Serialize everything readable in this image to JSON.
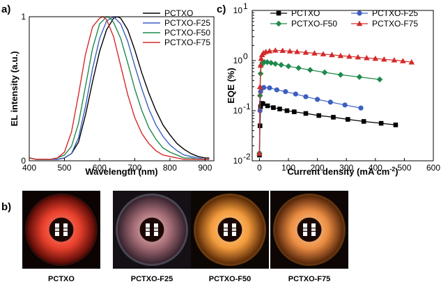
{
  "panels": {
    "a": "a)",
    "b": "b)",
    "c": "c)"
  },
  "chart_data": [
    {
      "id": "a",
      "type": "line",
      "xlabel": "Wavelength (nm)",
      "ylabel": "EL intensity (a.u.)",
      "xlim": [
        400,
        925
      ],
      "ylim": [
        0,
        1
      ],
      "xticks": [
        "400",
        "500",
        "600",
        "700",
        "800",
        "900"
      ],
      "xtick_values": [
        400,
        500,
        600,
        700,
        800,
        900
      ],
      "yticks": [
        "0",
        "1"
      ],
      "ytick_values": [
        0,
        1
      ],
      "legend_position": "top-right",
      "series": [
        {
          "name": "PCTXO",
          "color": "#000000",
          "x": [
            400,
            420,
            440,
            460,
            480,
            500,
            520,
            540,
            560,
            580,
            600,
            620,
            640,
            650,
            660,
            680,
            700,
            720,
            740,
            760,
            780,
            800,
            820,
            840,
            860,
            880,
            900,
            912
          ],
          "y": [
            0.02,
            0.01,
            0.01,
            0.01,
            0.01,
            0.02,
            0.05,
            0.13,
            0.32,
            0.55,
            0.76,
            0.91,
            0.99,
            1.0,
            0.99,
            0.91,
            0.77,
            0.61,
            0.47,
            0.35,
            0.25,
            0.18,
            0.12,
            0.08,
            0.05,
            0.03,
            0.02,
            0.02
          ]
        },
        {
          "name": "PCTXO-F25",
          "color": "#3b5fc0",
          "x": [
            400,
            420,
            440,
            460,
            480,
            500,
            520,
            540,
            560,
            580,
            600,
            620,
            640,
            660,
            680,
            700,
            720,
            740,
            760,
            780,
            800,
            820,
            840,
            860,
            880,
            900,
            912
          ],
          "y": [
            0.02,
            0.01,
            0.01,
            0.01,
            0.01,
            0.02,
            0.05,
            0.16,
            0.38,
            0.64,
            0.85,
            0.97,
            1.0,
            0.95,
            0.83,
            0.66,
            0.5,
            0.36,
            0.25,
            0.17,
            0.11,
            0.07,
            0.04,
            0.03,
            0.02,
            0.01,
            0.01
          ]
        },
        {
          "name": "PCTXO-F50",
          "color": "#1f8a4c",
          "x": [
            400,
            420,
            440,
            460,
            480,
            500,
            520,
            540,
            560,
            580,
            600,
            620,
            630,
            640,
            660,
            680,
            700,
            720,
            740,
            760,
            780,
            800,
            820,
            840,
            860,
            880,
            900,
            912
          ],
          "y": [
            0.02,
            0.01,
            0.01,
            0.01,
            0.02,
            0.04,
            0.1,
            0.26,
            0.52,
            0.78,
            0.95,
            1.0,
            0.99,
            0.96,
            0.85,
            0.68,
            0.5,
            0.35,
            0.23,
            0.15,
            0.09,
            0.06,
            0.04,
            0.02,
            0.02,
            0.01,
            0.01,
            0.01
          ]
        },
        {
          "name": "PCTXO-F75",
          "color": "#d42a2a",
          "x": [
            400,
            420,
            440,
            460,
            480,
            500,
            520,
            540,
            560,
            580,
            600,
            610,
            620,
            640,
            660,
            680,
            700,
            720,
            740,
            760,
            780,
            800,
            820,
            840,
            860,
            880,
            900,
            912
          ],
          "y": [
            0.02,
            0.01,
            0.01,
            0.01,
            0.02,
            0.06,
            0.2,
            0.46,
            0.74,
            0.93,
            0.99,
            1.0,
            0.98,
            0.86,
            0.66,
            0.46,
            0.3,
            0.19,
            0.12,
            0.07,
            0.04,
            0.03,
            0.02,
            0.01,
            0.01,
            0.01,
            0.01,
            0.01
          ]
        }
      ]
    },
    {
      "id": "c",
      "type": "line",
      "xlabel": "Current density (mA cm",
      "xlabel_superscript": "-2",
      "xlabel_suffix": ")",
      "ylabel": "EQE (%)",
      "yscale": "log",
      "xlim": [
        -25,
        600
      ],
      "ylim": [
        0.01,
        10
      ],
      "xticks": [
        "0",
        "100",
        "200",
        "300",
        "400",
        "500",
        "600"
      ],
      "xtick_values": [
        0,
        100,
        200,
        300,
        400,
        500,
        600
      ],
      "yticks": [
        {
          "base": "10",
          "exp": "1",
          "value": 10
        },
        {
          "base": "10",
          "exp": "0",
          "value": 1
        },
        {
          "base": "10",
          "exp": "-1",
          "value": 0.1
        },
        {
          "base": "10",
          "exp": "-2",
          "value": 0.01
        }
      ],
      "legend_position": "top",
      "series": [
        {
          "name": "PCTXO",
          "color": "#000000",
          "marker": "square",
          "x": [
            0,
            2,
            4,
            7,
            12,
            28,
            48,
            70,
            95,
            120,
            160,
            205,
            255,
            305,
            360,
            420,
            470
          ],
          "y": [
            0.013,
            0.05,
            0.12,
            0.14,
            0.138,
            0.125,
            0.115,
            0.108,
            0.1,
            0.095,
            0.088,
            0.08,
            0.074,
            0.067,
            0.061,
            0.056,
            0.052
          ]
        },
        {
          "name": "PCTXO-F25",
          "color": "#3b5fc0",
          "marker": "circle",
          "x": [
            0,
            2,
            4,
            8,
            15,
            35,
            60,
            90,
            125,
            160,
            200,
            245,
            295,
            350
          ],
          "y": [
            0.014,
            0.1,
            0.24,
            0.28,
            0.29,
            0.285,
            0.26,
            0.24,
            0.215,
            0.19,
            0.168,
            0.148,
            0.13,
            0.113
          ]
        },
        {
          "name": "PCTXO-F50",
          "color": "#1f8a4c",
          "marker": "diamond",
          "x": [
            0,
            2,
            4,
            6,
            10,
            17,
            27,
            40,
            55,
            75,
            100,
            135,
            175,
            225,
            280,
            345,
            415
          ],
          "y": [
            0.014,
            0.2,
            0.55,
            0.8,
            0.9,
            0.93,
            0.93,
            0.9,
            0.86,
            0.82,
            0.77,
            0.71,
            0.65,
            0.58,
            0.52,
            0.47,
            0.42
          ]
        },
        {
          "name": "PCTXO-F75",
          "color": "#d42a2a",
          "marker": "triangle",
          "x": [
            0,
            2,
            4,
            6,
            9,
            14,
            22,
            35,
            55,
            80,
            105,
            130,
            160,
            190,
            220,
            250,
            280,
            310,
            340,
            370,
            400,
            430,
            465,
            495,
            525
          ],
          "y": [
            0.014,
            0.3,
            0.8,
            1.1,
            1.3,
            1.42,
            1.5,
            1.55,
            1.6,
            1.58,
            1.54,
            1.5,
            1.45,
            1.4,
            1.35,
            1.3,
            1.25,
            1.21,
            1.17,
            1.13,
            1.1,
            1.06,
            1.02,
            0.98,
            0.93
          ]
        }
      ]
    }
  ],
  "devices": [
    {
      "label": "PCTXO",
      "glow_core": "#ff8a70",
      "glow_mid": "#e8402c",
      "glow_edge": "#5a0a06",
      "background": "#0c0303",
      "rim": "#3a0e0a"
    },
    {
      "label": "PCTXO-F25",
      "glow_core": "#f2c7c2",
      "glow_mid": "#a26a74",
      "glow_edge": "#35222c",
      "background": "#141015",
      "rim": "#4a4652"
    },
    {
      "label": "PCTXO-F50",
      "glow_core": "#ffd89a",
      "glow_mid": "#f29a3c",
      "glow_edge": "#5a2a06",
      "background": "#0d0703",
      "rim": "#6a3a10"
    },
    {
      "label": "PCTXO-F75",
      "glow_core": "#ffd4a0",
      "glow_mid": "#ea8c42",
      "glow_edge": "#55250a",
      "background": "#0d0604",
      "rim": "#60340f"
    }
  ]
}
